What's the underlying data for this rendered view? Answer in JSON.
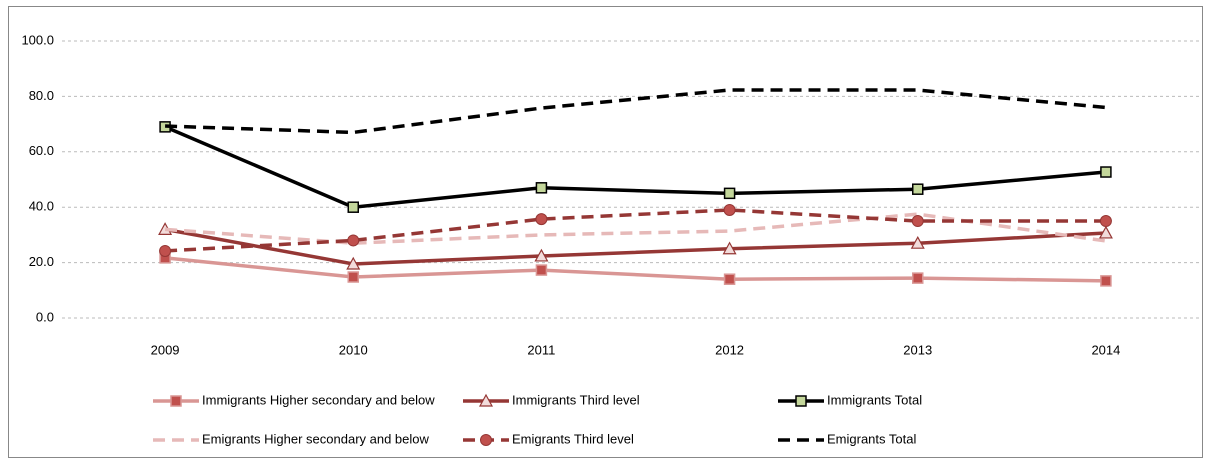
{
  "chart_data": {
    "type": "line",
    "categories": [
      "2009",
      "2010",
      "2011",
      "2012",
      "2013",
      "2014"
    ],
    "ylim": [
      0,
      100
    ],
    "yticks": [
      {
        "value": 0,
        "label": "0.0"
      },
      {
        "value": 20,
        "label": "20.0"
      },
      {
        "value": 40,
        "label": "40.0"
      },
      {
        "value": 60,
        "label": "60.0"
      },
      {
        "value": 80,
        "label": "80.0"
      },
      {
        "value": 100,
        "label": "100.0"
      }
    ],
    "grid": true,
    "series": [
      {
        "name": "Immigrants  Higher secondary and below",
        "color": "#d99694",
        "dashed": false,
        "marker": "square",
        "marker_color": "#c0504d",
        "values": [
          21.7,
          14.8,
          17.3,
          14,
          14.4,
          13.4
        ]
      },
      {
        "name": "Immigrants  Third level",
        "color": "#953735",
        "dashed": false,
        "marker": "triangle",
        "marker_color": "#f2dcdb",
        "values": [
          32,
          19.5,
          22.4,
          25,
          27,
          30.7
        ]
      },
      {
        "name": "Immigrants  Total",
        "color": "#000000",
        "dashed": false,
        "marker": "square",
        "marker_color": "#c4d79b",
        "values": [
          69,
          40,
          47,
          45,
          46.5,
          52.7
        ]
      },
      {
        "name": "Emigrants  Higher secondary and below",
        "color": "#e6b9b8",
        "dashed": true,
        "marker": "none",
        "marker_color": "#e6b9b8",
        "values": [
          32,
          27,
          30,
          31.4,
          37.5,
          27.8
        ]
      },
      {
        "name": "Emigrants  Third level",
        "color": "#953735",
        "dashed": true,
        "marker": "circle",
        "marker_color": "#c0504d",
        "values": [
          24.2,
          28,
          35.7,
          39,
          35,
          35
        ]
      },
      {
        "name": "Emigrants  Total",
        "color": "#000000",
        "dashed": true,
        "marker": "none",
        "marker_color": "#000000",
        "values": [
          69.3,
          67,
          75.8,
          82.3,
          82.3,
          76
        ]
      }
    ]
  }
}
